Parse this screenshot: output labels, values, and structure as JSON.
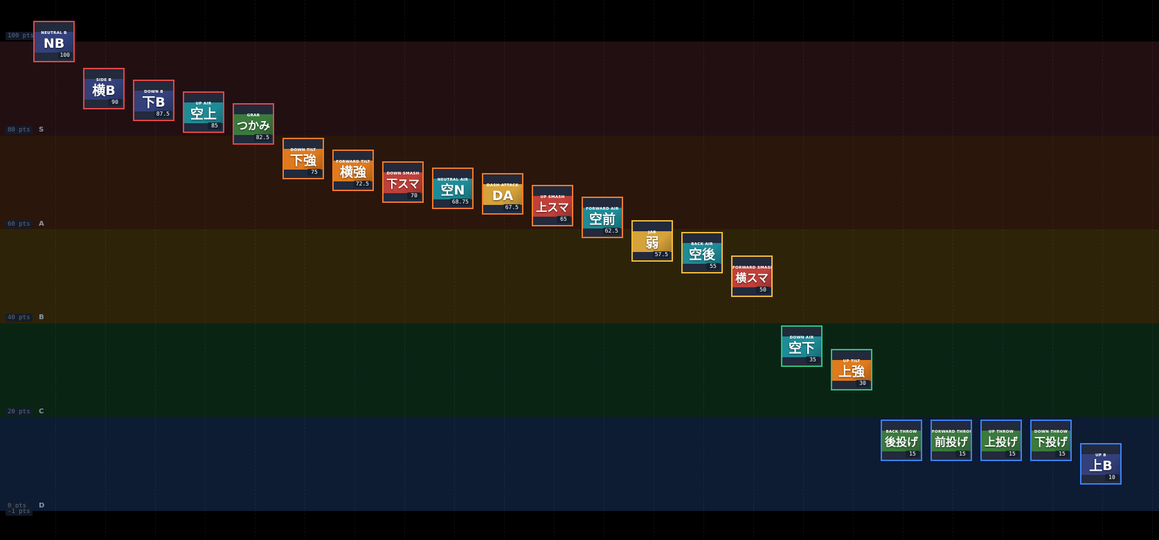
{
  "chart_data": {
    "type": "scatter",
    "title": "",
    "xlabel": "",
    "ylabel": "",
    "ylim": [
      -1,
      108
    ],
    "y_ticks": [
      "100 pts",
      "80 pts",
      "60 pts",
      "40 pts",
      "20 pts",
      "0 pts",
      "-1 pts"
    ],
    "tiers": [
      {
        "letter": "S",
        "from": 80,
        "to": 100,
        "color": "#220f12"
      },
      {
        "letter": "A",
        "from": 60,
        "to": 80,
        "color": "#2a160b"
      },
      {
        "letter": "B",
        "from": 40,
        "to": 60,
        "color": "#2d2309"
      },
      {
        "letter": "C",
        "from": 20,
        "to": 40,
        "color": "#0a2414"
      },
      {
        "letter": "D",
        "from": 0,
        "to": 20,
        "color": "#0d1b33"
      }
    ],
    "points": [
      {
        "en": "NEUTRAL B",
        "jp": "NB",
        "value": "100",
        "art": "#33407a",
        "tier": "S"
      },
      {
        "en": "SIDE B",
        "jp": "横B",
        "value": "90",
        "art": "#33407a",
        "tier": "S"
      },
      {
        "en": "DOWN B",
        "jp": "下B",
        "value": "87.5",
        "art": "#33407a",
        "tier": "S"
      },
      {
        "en": "UP AIR",
        "jp": "空上",
        "value": "85",
        "art": "#1e8c98",
        "tier": "S"
      },
      {
        "en": "GRAB",
        "jp": "つかみ",
        "value": "82.5",
        "art": "#3b7a3d",
        "tier": "S"
      },
      {
        "en": "DOWN TILT",
        "jp": "下強",
        "value": "75",
        "art": "#e07a1c",
        "tier": "A"
      },
      {
        "en": "FORWARD TILT",
        "jp": "横強",
        "value": "72.5",
        "art": "#e07a1c",
        "tier": "A"
      },
      {
        "en": "DOWN SMASH",
        "jp": "下スマ",
        "value": "70",
        "art": "#c0403a",
        "tier": "A"
      },
      {
        "en": "NEUTRAL AIR",
        "jp": "空N",
        "value": "68.75",
        "art": "#1e8c98",
        "tier": "A"
      },
      {
        "en": "DASH ATTACK",
        "jp": "DA",
        "value": "67.5",
        "art": "#d6a23a",
        "tier": "A"
      },
      {
        "en": "UP SMASH",
        "jp": "上スマ",
        "value": "65",
        "art": "#c0403a",
        "tier": "A"
      },
      {
        "en": "FORWARD AIR",
        "jp": "空前",
        "value": "62.5",
        "art": "#1e8c98",
        "tier": "A"
      },
      {
        "en": "JAB",
        "jp": "弱",
        "value": "57.5",
        "art": "#d6a23a",
        "tier": "B"
      },
      {
        "en": "BACK AIR",
        "jp": "空後",
        "value": "55",
        "art": "#1e8c98",
        "tier": "B"
      },
      {
        "en": "FORWARD SMASH",
        "jp": "横スマ",
        "value": "50",
        "art": "#c0403a",
        "tier": "B"
      },
      {
        "en": "DOWN AIR",
        "jp": "空下",
        "value": "35",
        "art": "#1e8c98",
        "tier": "C"
      },
      {
        "en": "UP TILT",
        "jp": "上強",
        "value": "30",
        "art": "#e07a1c",
        "tier": "C"
      },
      {
        "en": "BACK THROW",
        "jp": "後投げ",
        "value": "15",
        "art": "#3b7a3d",
        "tier": "D"
      },
      {
        "en": "FORWARD THROW",
        "jp": "前投げ",
        "value": "15",
        "art": "#3b7a3d",
        "tier": "D"
      },
      {
        "en": "UP THROW",
        "jp": "上投げ",
        "value": "15",
        "art": "#3b7a3d",
        "tier": "D"
      },
      {
        "en": "DOWN THROW",
        "jp": "下投げ",
        "value": "15",
        "art": "#3b7a3d",
        "tier": "D"
      },
      {
        "en": "UP B",
        "jp": "上B",
        "value": "10",
        "art": "#33407a",
        "tier": "D"
      }
    ],
    "tier_border_colors": {
      "S": "#e04747",
      "A": "#f07a2a",
      "B": "#f0b93a",
      "C": "#2ec27e",
      "D": "#3b82f6"
    }
  }
}
